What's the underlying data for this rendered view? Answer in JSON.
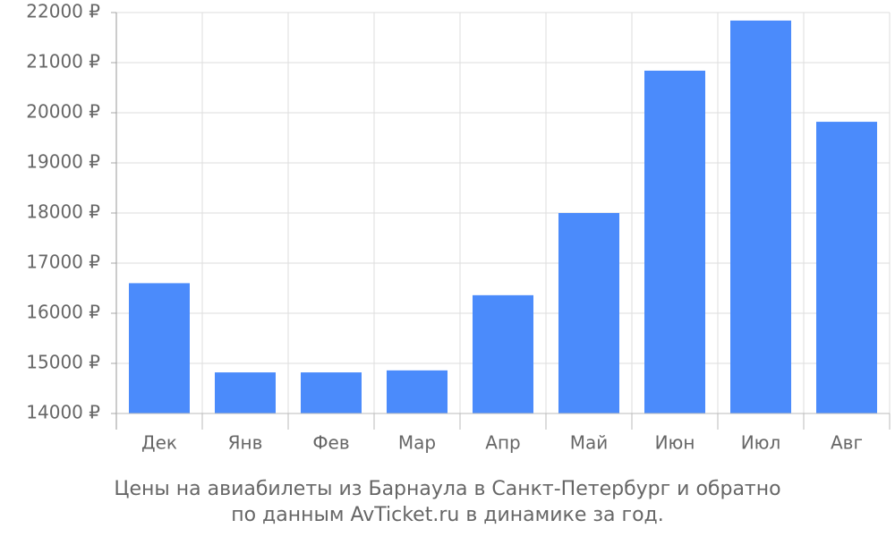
{
  "chart_data": {
    "type": "bar",
    "caption": [
      "Цены на авиабилеты из Барнаула в Санкт-Петербург и обратно",
      "по данным AvTicket.ru в динамике за год."
    ],
    "categories": [
      "Дек",
      "Янв",
      "Фев",
      "Мар",
      "Апр",
      "Май",
      "Июн",
      "Июл",
      "Авг"
    ],
    "values": [
      16600,
      14820,
      14820,
      14860,
      16360,
      18000,
      20840,
      21840,
      19820
    ],
    "color": "#4b8bfb",
    "ylim": [
      14000,
      22000
    ],
    "yticks": [
      {
        "value": 14000,
        "label": "14000 ₽"
      },
      {
        "value": 15000,
        "label": "15000 ₽"
      },
      {
        "value": 16000,
        "label": "16000 ₽"
      },
      {
        "value": 17000,
        "label": "17000 ₽"
      },
      {
        "value": 18000,
        "label": "18000 ₽"
      },
      {
        "value": 19000,
        "label": "19000 ₽"
      },
      {
        "value": 20000,
        "label": "20000 ₽"
      },
      {
        "value": 21000,
        "label": "21000 ₽"
      },
      {
        "value": 22000,
        "label": "22000 ₽"
      }
    ],
    "grid": true
  }
}
